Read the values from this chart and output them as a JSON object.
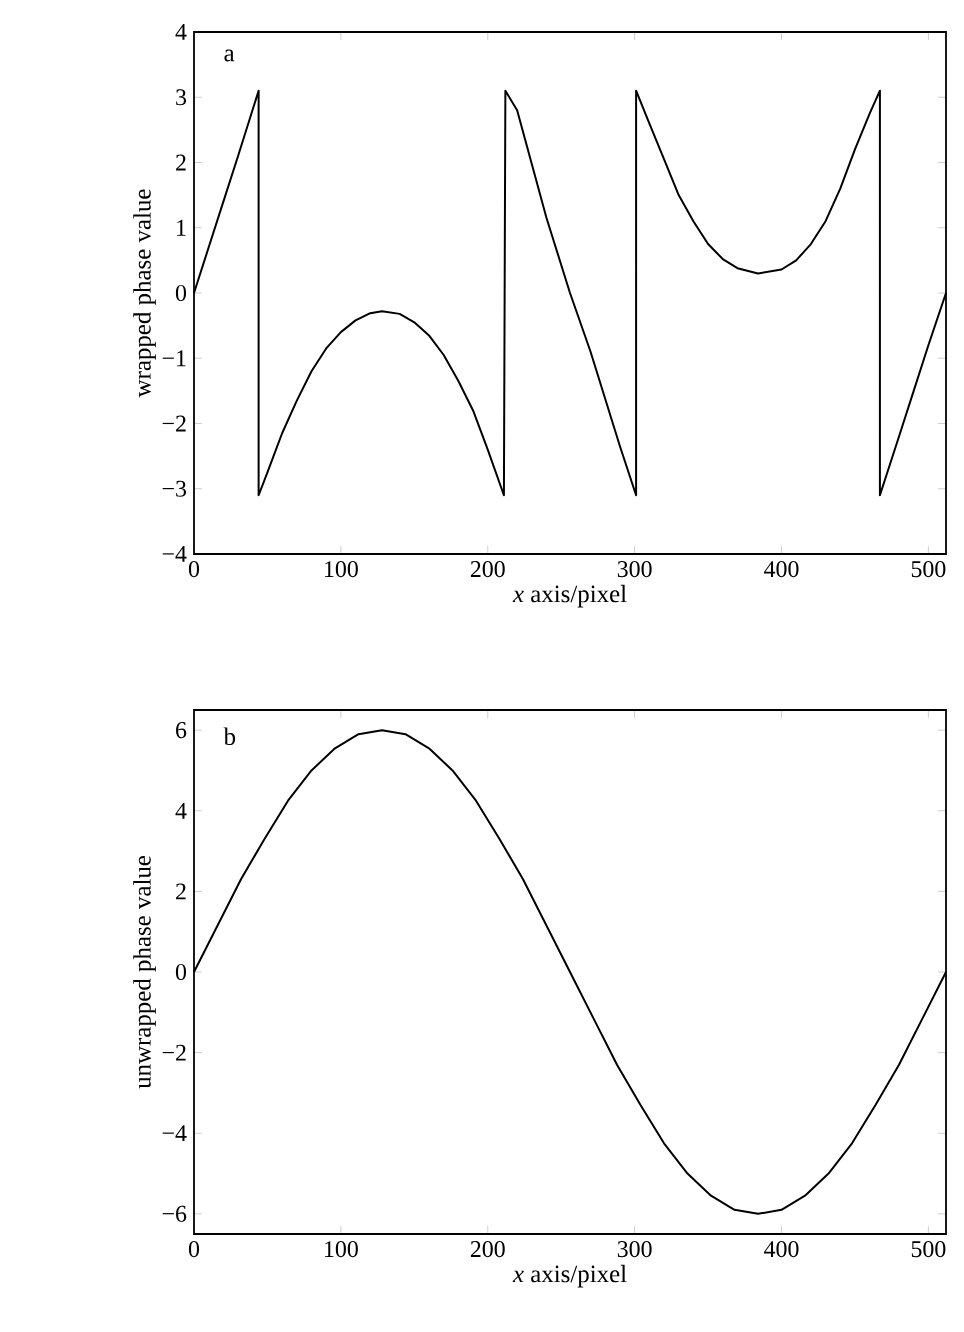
{
  "chart_data": [
    {
      "type": "line",
      "xlabel": "*x* axis/pixel",
      "ylabel": "wrapped phase value",
      "annotations": [
        "a"
      ],
      "xlim": [
        0,
        512
      ],
      "ylim": [
        -4,
        4
      ],
      "xticks": [
        0,
        100,
        200,
        300,
        400,
        500
      ],
      "yticks": [
        {
          "value": -4,
          "label": "−4"
        },
        {
          "value": -3,
          "label": "−3"
        },
        {
          "value": -2,
          "label": "−2"
        },
        {
          "value": -1,
          "label": "−1"
        },
        0,
        1,
        2,
        3,
        4
      ],
      "grid": false,
      "series": [
        {
          "color": "#000000",
          "x": [
            0,
            10,
            20,
            30,
            44,
            44,
            50,
            60,
            70,
            80,
            90,
            100,
            110,
            120,
            128,
            140,
            150,
            160,
            170,
            180,
            190,
            200,
            211,
            212,
            220,
            240,
            256,
            270,
            290,
            301,
            301,
            310,
            320,
            330,
            340,
            350,
            360,
            370,
            384,
            400,
            410,
            420,
            430,
            440,
            450,
            460,
            467,
            467,
            480,
            490,
            500,
            512
          ],
          "values": [
            0,
            0.7,
            1.4,
            2.1,
            3.1,
            -3.1,
            -2.75,
            -2.15,
            -1.65,
            -1.2,
            -0.85,
            -0.6,
            -0.42,
            -0.31,
            -0.28,
            -0.32,
            -0.45,
            -0.65,
            -0.95,
            -1.35,
            -1.8,
            -2.4,
            -3.1,
            3.1,
            2.8,
            1.15,
            0,
            -0.9,
            -2.35,
            -3.1,
            3.1,
            2.6,
            2.05,
            1.5,
            1.1,
            0.75,
            0.52,
            0.38,
            0.3,
            0.36,
            0.5,
            0.75,
            1.1,
            1.6,
            2.2,
            2.75,
            3.1,
            -3.1,
            -2.2,
            -1.5,
            -0.8,
            0
          ]
        }
      ]
    },
    {
      "type": "line",
      "xlabel": "*x* axis/pixel",
      "ylabel": "unwrapped phase value",
      "annotations": [
        "b"
      ],
      "xlim": [
        0,
        512
      ],
      "ylim": [
        -6.5,
        6.5
      ],
      "xticks": [
        0,
        100,
        200,
        300,
        400,
        500
      ],
      "yticks": [
        {
          "value": -6,
          "label": "−6"
        },
        {
          "value": -4,
          "label": "−4"
        },
        {
          "value": -2,
          "label": "−2"
        },
        0,
        2,
        4,
        6
      ],
      "grid": false,
      "series": [
        {
          "color": "#000000",
          "x": [
            0,
            16,
            32,
            48,
            64,
            80,
            96,
            112,
            128,
            144,
            160,
            176,
            192,
            208,
            224,
            240,
            256,
            272,
            288,
            304,
            320,
            336,
            352,
            368,
            384,
            400,
            416,
            432,
            448,
            464,
            480,
            496,
            512
          ],
          "values": [
            0,
            1.15,
            2.3,
            3.3,
            4.25,
            5.0,
            5.55,
            5.9,
            6.0,
            5.9,
            5.55,
            5.0,
            4.25,
            3.3,
            2.3,
            1.15,
            0,
            -1.15,
            -2.3,
            -3.3,
            -4.25,
            -5.0,
            -5.55,
            -5.9,
            -6.0,
            -5.9,
            -5.55,
            -5.0,
            -4.25,
            -3.3,
            -2.3,
            -1.15,
            0
          ]
        }
      ]
    }
  ]
}
